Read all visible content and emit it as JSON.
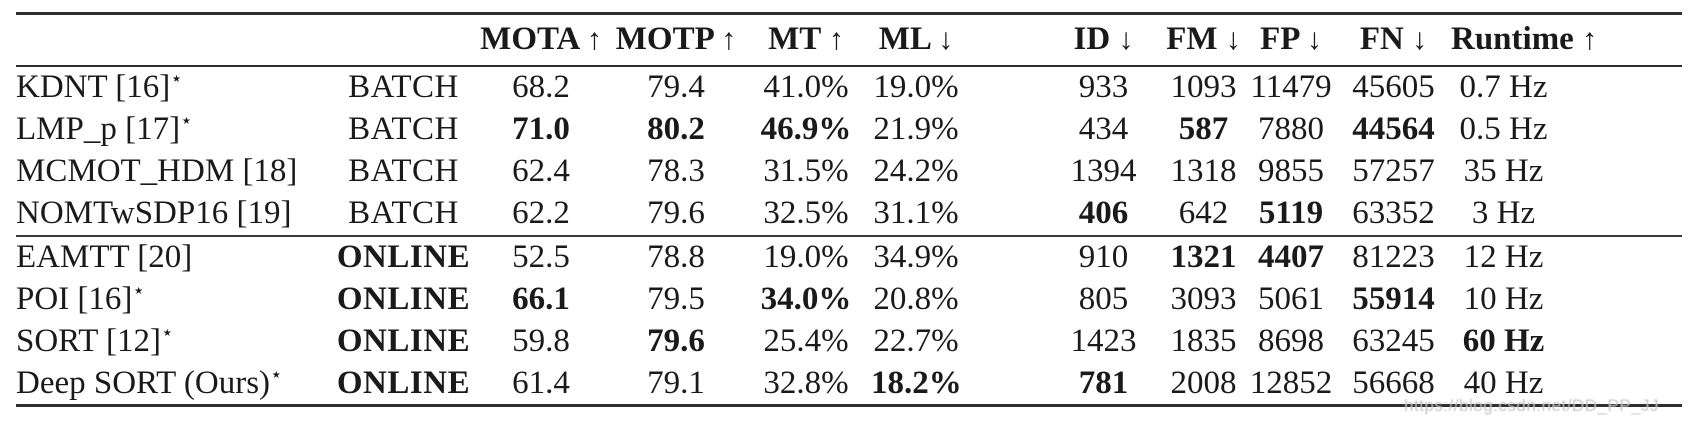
{
  "page": {
    "background": "#ffffff",
    "rule_color": "#2e2e2e",
    "text_color": "#1a1a1a"
  },
  "watermark": {
    "text": "https://blog.csdn.net/DD_PP_JJ",
    "color": "#c6c6c6"
  },
  "table": {
    "header": {
      "method_label": "",
      "mode_label": "",
      "metrics": [
        {
          "label": "MOTA",
          "arrow": "↑"
        },
        {
          "label": "MOTP",
          "arrow": "↑"
        },
        {
          "label": "MT",
          "arrow": "↑"
        },
        {
          "label": "ML",
          "arrow": "↓"
        },
        {
          "label": "ID",
          "arrow": "↓"
        },
        {
          "label": "FM",
          "arrow": "↓"
        },
        {
          "label": "FP",
          "arrow": "↓"
        },
        {
          "label": "FN",
          "arrow": "↓"
        },
        {
          "label": "Runtime",
          "arrow": "↑"
        }
      ]
    },
    "rows": [
      {
        "method": "KDNT [16]",
        "star": "⋆",
        "mode": "BATCH",
        "mode_bold": false,
        "section_start": false,
        "values": [
          "68.2",
          "79.4",
          "41.0%",
          "19.0%",
          "933",
          "1093",
          "11479",
          "45605",
          "0.7 Hz"
        ],
        "bold": [
          false,
          false,
          false,
          false,
          false,
          false,
          false,
          false,
          false
        ]
      },
      {
        "method": "LMP_p [17]",
        "star": "⋆",
        "mode": "BATCH",
        "mode_bold": false,
        "section_start": false,
        "values": [
          "71.0",
          "80.2",
          "46.9%",
          "21.9%",
          "434",
          "587",
          "7880",
          "44564",
          "0.5 Hz"
        ],
        "bold": [
          true,
          true,
          true,
          false,
          false,
          true,
          false,
          true,
          false
        ]
      },
      {
        "method": "MCMOT_HDM [18]",
        "star": "",
        "mode": "BATCH",
        "mode_bold": false,
        "section_start": false,
        "values": [
          "62.4",
          "78.3",
          "31.5%",
          "24.2%",
          "1394",
          "1318",
          "9855",
          "57257",
          "35 Hz"
        ],
        "bold": [
          false,
          false,
          false,
          false,
          false,
          false,
          false,
          false,
          false
        ]
      },
      {
        "method": "NOMTwSDP16 [19]",
        "star": "",
        "mode": "BATCH",
        "mode_bold": false,
        "section_start": false,
        "values": [
          "62.2",
          "79.6",
          "32.5%",
          "31.1%",
          "406",
          "642",
          "5119",
          "63352",
          "3 Hz"
        ],
        "bold": [
          false,
          false,
          false,
          false,
          true,
          false,
          true,
          false,
          false
        ]
      },
      {
        "method": "EAMTT [20]",
        "star": "",
        "mode": "ONLINE",
        "mode_bold": true,
        "section_start": true,
        "values": [
          "52.5",
          "78.8",
          "19.0%",
          "34.9%",
          "910",
          "1321",
          "4407",
          "81223",
          "12 Hz"
        ],
        "bold": [
          false,
          false,
          false,
          false,
          false,
          true,
          true,
          false,
          false
        ]
      },
      {
        "method": "POI [16]",
        "star": "⋆",
        "mode": "ONLINE",
        "mode_bold": true,
        "section_start": false,
        "values": [
          "66.1",
          "79.5",
          "34.0%",
          "20.8%",
          "805",
          "3093",
          "5061",
          "55914",
          "10 Hz"
        ],
        "bold": [
          true,
          false,
          true,
          false,
          false,
          false,
          false,
          true,
          false
        ]
      },
      {
        "method": "SORT [12]",
        "star": "⋆",
        "mode": "ONLINE",
        "mode_bold": true,
        "section_start": false,
        "values": [
          "59.8",
          "79.6",
          "25.4%",
          "22.7%",
          "1423",
          "1835",
          "8698",
          "63245",
          "60 Hz"
        ],
        "bold": [
          false,
          true,
          false,
          false,
          false,
          false,
          false,
          false,
          true
        ]
      },
      {
        "method": "Deep SORT (Ours)",
        "star": "⋆",
        "mode": "ONLINE",
        "mode_bold": true,
        "section_start": false,
        "values": [
          "61.4",
          "79.1",
          "32.8%",
          "18.2%",
          "781",
          "2008",
          "12852",
          "56668",
          "40 Hz"
        ],
        "bold": [
          false,
          false,
          false,
          true,
          true,
          false,
          false,
          false,
          false
        ]
      }
    ]
  }
}
